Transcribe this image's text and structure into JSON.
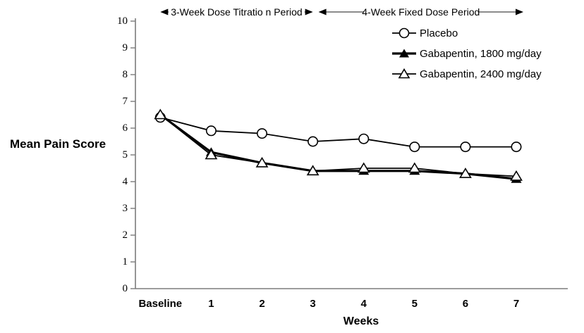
{
  "chart_data": {
    "type": "line",
    "title": "",
    "xlabel": "Weeks",
    "ylabel": "Mean Pain Score",
    "ylim": [
      0,
      10
    ],
    "yticks": [
      0,
      1,
      2,
      3,
      4,
      5,
      6,
      7,
      8,
      9,
      10
    ],
    "categories": [
      "Baseline",
      "1",
      "2",
      "3",
      "4",
      "5",
      "6",
      "7"
    ],
    "series": [
      {
        "name": "Placebo",
        "marker": "open-circle",
        "line_width": 1.8,
        "values": [
          6.4,
          5.9,
          5.8,
          5.5,
          5.6,
          5.3,
          5.3,
          5.3
        ]
      },
      {
        "name": "Gabapentin, 1800 mg/day",
        "marker": "filled-triangle",
        "line_width": 3.2,
        "values": [
          6.5,
          5.1,
          4.7,
          4.4,
          4.4,
          4.4,
          4.3,
          4.1
        ]
      },
      {
        "name": "Gabapentin, 2400 mg/day",
        "marker": "open-triangle",
        "line_width": 1.8,
        "values": [
          6.5,
          5.0,
          4.7,
          4.4,
          4.5,
          4.5,
          4.3,
          4.2
        ]
      }
    ],
    "annotations": [
      {
        "label": "3-Week Dose Titratio n Period",
        "from_category": "Baseline",
        "to_category": "3"
      },
      {
        "label": "4-Week Fixed Dose Period",
        "from_category": "3",
        "to_category": "7"
      }
    ],
    "legend_position": "upper-right-inside",
    "grid": false,
    "colors": {
      "data": "#000000",
      "axis": "#7b7b7b",
      "annotation_line": "#666666",
      "background": "#ffffff"
    }
  }
}
